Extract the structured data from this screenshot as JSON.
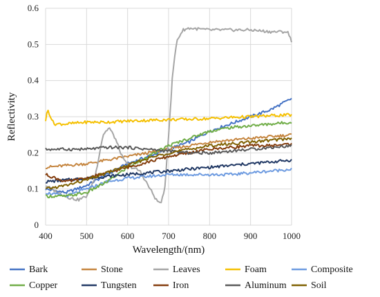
{
  "chart_data": {
    "type": "line",
    "title": "",
    "xlabel": "Wavelength/(nm)",
    "ylabel": "Reflectivity",
    "xlim": [
      400,
      1000
    ],
    "ylim": [
      0,
      0.6
    ],
    "xticks": [
      400,
      500,
      600,
      700,
      800,
      900,
      1000
    ],
    "yticks": [
      0,
      0.1,
      0.2,
      0.3,
      0.4,
      0.5,
      0.6
    ],
    "grid": true,
    "legend_position": "bottom",
    "series": [
      {
        "name": "Bark",
        "color": "#4472C4",
        "x": [
          400,
          450,
          500,
          550,
          600,
          650,
          700,
          750,
          800,
          850,
          900,
          950,
          1000
        ],
        "y": [
          0.1,
          0.09,
          0.11,
          0.14,
          0.17,
          0.19,
          0.21,
          0.23,
          0.26,
          0.28,
          0.3,
          0.32,
          0.35
        ]
      },
      {
        "name": "Stone",
        "color": "#C5853F",
        "x": [
          400,
          450,
          500,
          550,
          600,
          650,
          700,
          750,
          800,
          850,
          900,
          950,
          1000
        ],
        "y": [
          0.16,
          0.165,
          0.17,
          0.18,
          0.19,
          0.2,
          0.21,
          0.22,
          0.23,
          0.235,
          0.24,
          0.245,
          0.25
        ]
      },
      {
        "name": "Leaves",
        "color": "#A5A5A5",
        "x": [
          400,
          430,
          460,
          480,
          500,
          520,
          540,
          555,
          570,
          590,
          610,
          630,
          650,
          670,
          680,
          690,
          700,
          710,
          720,
          735,
          750,
          800,
          850,
          900,
          950,
          990,
          1000
        ],
        "y": [
          0.11,
          0.09,
          0.075,
          0.07,
          0.08,
          0.13,
          0.25,
          0.27,
          0.24,
          0.18,
          0.16,
          0.15,
          0.11,
          0.07,
          0.06,
          0.09,
          0.25,
          0.42,
          0.51,
          0.54,
          0.545,
          0.54,
          0.54,
          0.54,
          0.535,
          0.535,
          0.51
        ]
      },
      {
        "name": "Foam",
        "color": "#F5C000",
        "x": [
          400,
          405,
          420,
          450,
          500,
          550,
          600,
          650,
          700,
          750,
          800,
          850,
          900,
          950,
          1000
        ],
        "y": [
          0.29,
          0.32,
          0.28,
          0.28,
          0.285,
          0.285,
          0.288,
          0.29,
          0.292,
          0.293,
          0.295,
          0.298,
          0.3,
          0.303,
          0.305
        ]
      },
      {
        "name": "Composite",
        "color": "#6C9AE0",
        "x": [
          400,
          450,
          500,
          550,
          600,
          650,
          700,
          750,
          800,
          850,
          900,
          950,
          1000
        ],
        "y": [
          0.09,
          0.08,
          0.1,
          0.12,
          0.13,
          0.135,
          0.14,
          0.14,
          0.14,
          0.14,
          0.145,
          0.15,
          0.155
        ]
      },
      {
        "name": "Copper",
        "color": "#70AD47",
        "x": [
          400,
          450,
          500,
          550,
          600,
          650,
          700,
          750,
          800,
          850,
          900,
          950,
          1000
        ],
        "y": [
          0.08,
          0.08,
          0.09,
          0.12,
          0.16,
          0.19,
          0.22,
          0.24,
          0.26,
          0.27,
          0.275,
          0.28,
          0.285
        ]
      },
      {
        "name": "Tungsten",
        "color": "#203864",
        "x": [
          400,
          450,
          500,
          550,
          600,
          650,
          700,
          750,
          800,
          850,
          900,
          950,
          1000
        ],
        "y": [
          0.12,
          0.125,
          0.13,
          0.135,
          0.14,
          0.145,
          0.15,
          0.155,
          0.16,
          0.165,
          0.17,
          0.175,
          0.18
        ]
      },
      {
        "name": "Iron",
        "color": "#843C0C",
        "x": [
          400,
          450,
          500,
          550,
          600,
          650,
          700,
          750,
          800,
          850,
          900,
          950,
          1000
        ],
        "y": [
          0.14,
          0.12,
          0.13,
          0.145,
          0.16,
          0.175,
          0.19,
          0.2,
          0.21,
          0.215,
          0.22,
          0.22,
          0.225
        ]
      },
      {
        "name": "Aluminum",
        "color": "#595959",
        "x": [
          400,
          450,
          500,
          550,
          600,
          650,
          700,
          750,
          800,
          850,
          900,
          950,
          1000
        ],
        "y": [
          0.21,
          0.21,
          0.21,
          0.215,
          0.215,
          0.21,
          0.205,
          0.2,
          0.2,
          0.205,
          0.21,
          0.215,
          0.22
        ]
      },
      {
        "name": "Soil",
        "color": "#7F6000",
        "x": [
          400,
          450,
          500,
          550,
          600,
          650,
          700,
          750,
          800,
          850,
          900,
          950,
          1000
        ],
        "y": [
          0.1,
          0.11,
          0.125,
          0.145,
          0.165,
          0.185,
          0.2,
          0.21,
          0.22,
          0.225,
          0.23,
          0.235,
          0.24
        ]
      }
    ]
  }
}
